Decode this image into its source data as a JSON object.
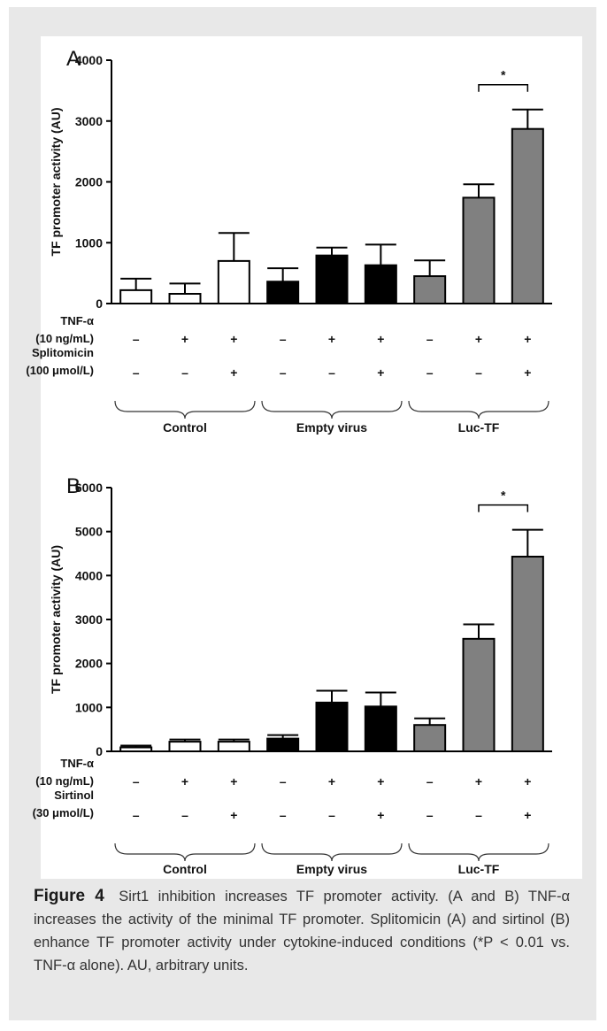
{
  "caption": {
    "label": "Figure 4",
    "text": "Sirt1 inhibition increases TF promoter activity. (A and B) TNF-α increases the activity of the minimal TF promoter. Splitomicin (A) and sirtinol (B) enhance TF promoter activity under cytokine-induced conditions (*P < 0.01 vs. TNF-α alone). AU, arbitrary units."
  },
  "colors": {
    "control": "#ffffff",
    "empty_virus": "#000000",
    "luc_tf": "#808080"
  },
  "chart_data": [
    {
      "panel": "A",
      "type": "bar",
      "ylabel": "TF promoter activity (AU)",
      "ylim": [
        0,
        4000
      ],
      "yticks": [
        "0",
        "1000",
        "2000",
        "3000",
        "4000"
      ],
      "yticks_values": [
        0,
        1000,
        2000,
        3000,
        4000
      ],
      "values": [
        220,
        160,
        700,
        360,
        790,
        630,
        450,
        1740,
        2870
      ],
      "errors": [
        190,
        170,
        460,
        220,
        130,
        340,
        260,
        220,
        320
      ],
      "group_index": [
        0,
        0,
        0,
        1,
        1,
        1,
        2,
        2,
        2
      ],
      "groups": [
        "Control",
        "Empty virus",
        "Luc-TF"
      ],
      "conditions": [
        {
          "label_lines": [
            "TNF-α",
            "(10 ng/mL)"
          ],
          "signs": [
            "–",
            "+",
            "+",
            "–",
            "+",
            "+",
            "–",
            "+",
            "+"
          ]
        },
        {
          "label_lines": [
            "Splitomicin",
            "(100 μmol/L)"
          ],
          "signs": [
            "–",
            "–",
            "+",
            "–",
            "–",
            "+",
            "–",
            "–",
            "+"
          ]
        }
      ],
      "significance": {
        "bars": [
          7,
          8
        ],
        "label": "*"
      }
    },
    {
      "panel": "B",
      "type": "bar",
      "ylabel": "TF promoter activity (AU)",
      "ylim": [
        0,
        6000
      ],
      "yticks": [
        "0",
        "1000",
        "2000",
        "3000",
        "4000",
        "5000",
        "6000"
      ],
      "yticks_values": [
        0,
        1000,
        2000,
        3000,
        4000,
        5000,
        6000
      ],
      "values": [
        90,
        220,
        220,
        290,
        1110,
        1020,
        600,
        2560,
        4430
      ],
      "errors": [
        40,
        50,
        50,
        80,
        270,
        320,
        150,
        330,
        610
      ],
      "group_index": [
        0,
        0,
        0,
        1,
        1,
        1,
        2,
        2,
        2
      ],
      "groups": [
        "Control",
        "Empty virus",
        "Luc-TF"
      ],
      "conditions": [
        {
          "label_lines": [
            "TNF-α",
            "(10 ng/mL)"
          ],
          "signs": [
            "–",
            "+",
            "+",
            "–",
            "+",
            "+",
            "–",
            "+",
            "+"
          ]
        },
        {
          "label_lines": [
            "Sirtinol",
            "(30 μmol/L)"
          ],
          "signs": [
            "–",
            "–",
            "+",
            "–",
            "–",
            "+",
            "–",
            "–",
            "+"
          ]
        }
      ],
      "significance": {
        "bars": [
          7,
          8
        ],
        "label": "*"
      }
    }
  ]
}
